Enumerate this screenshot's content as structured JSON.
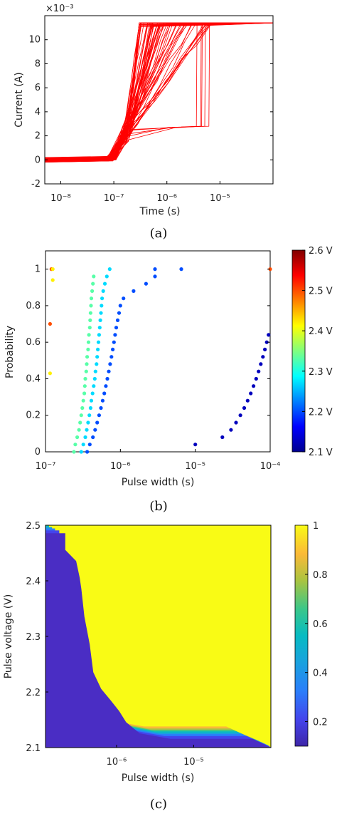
{
  "chart_data": [
    {
      "type": "line",
      "panel_label": "(a)",
      "xlabel": "Time (s)",
      "ylabel": "Current (A)",
      "x_scale": "log",
      "xlim": [
        5e-09,
        0.0001
      ],
      "ylim": [
        -2,
        12
      ],
      "y_multiplier_label": "×10⁻³",
      "xtick_labels": [
        "10⁻⁸",
        "10⁻⁷",
        "10⁻⁶",
        "10⁻⁵"
      ],
      "xtick_values": [
        1e-08,
        1e-07,
        1e-06,
        1e-05
      ],
      "ytick_values": [
        -2,
        0,
        2,
        4,
        6,
        8,
        10
      ],
      "ytick_labels": [
        "-2",
        "0",
        "2",
        "4",
        "6",
        "8",
        "10"
      ],
      "series_color": "#ff0000",
      "description_values": {
        "baseline_current_e-3": [
          -0.2,
          0.2
        ],
        "saturation_current_e-3": 11.4,
        "rise_start_time_s": 8e-08,
        "rise_end_time_range_s": [
          3e-07,
          8e-06
        ],
        "late_plateau_current_e-3": 2.7,
        "late_plateau_time_range_s": [
          1e-06,
          7e-06
        ]
      }
    },
    {
      "type": "scatter",
      "panel_label": "(b)",
      "xlabel": "Pulse width (s)",
      "ylabel": "Probability",
      "x_scale": "log",
      "xlim": [
        1e-07,
        0.0001
      ],
      "ylim": [
        0,
        1.1
      ],
      "xtick_labels": [
        "10⁻⁷",
        "10⁻⁶",
        "10⁻⁵",
        "10⁻⁴"
      ],
      "xtick_values": [
        1e-07,
        1e-06,
        1e-05,
        0.0001
      ],
      "ytick_values": [
        0,
        0.2,
        0.4,
        0.6,
        0.8,
        1
      ],
      "ytick_labels": [
        "0",
        "0.2",
        "0.4",
        "0.6",
        "0.8",
        "1"
      ],
      "colorbar": {
        "label_ticks": [
          "2.1 V",
          "2.2 V",
          "2.3 V",
          "2.4 V",
          "2.5 V",
          "2.6 V"
        ],
        "values": [
          2.1,
          2.2,
          2.3,
          2.4,
          2.5,
          2.6
        ],
        "colormap": "jet"
      },
      "series": [
        {
          "voltage": 2.5,
          "points": [
            [
              1.15e-07,
              0.7
            ],
            [
              1.2e-07,
              1.0
            ],
            [
              0.0001,
              1.0
            ]
          ]
        },
        {
          "voltage": 2.42,
          "points": [
            [
              1.15e-07,
              0.43
            ],
            [
              1.25e-07,
              0.94
            ],
            [
              1.25e-07,
              1.0
            ]
          ]
        },
        {
          "voltage": 2.33,
          "points": [
            [
              2.4e-07,
              0.0
            ],
            [
              2.5e-07,
              0.04
            ],
            [
              2.65e-07,
              0.08
            ],
            [
              2.8e-07,
              0.12
            ],
            [
              2.9e-07,
              0.16
            ],
            [
              3e-07,
              0.2
            ],
            [
              3.1e-07,
              0.24
            ],
            [
              3.2e-07,
              0.28
            ],
            [
              3.3e-07,
              0.32
            ],
            [
              3.35e-07,
              0.36
            ],
            [
              3.4e-07,
              0.4
            ],
            [
              3.5e-07,
              0.44
            ],
            [
              3.55e-07,
              0.48
            ],
            [
              3.6e-07,
              0.52
            ],
            [
              3.7e-07,
              0.56
            ],
            [
              3.75e-07,
              0.6
            ],
            [
              3.8e-07,
              0.64
            ],
            [
              3.9e-07,
              0.68
            ],
            [
              3.95e-07,
              0.72
            ],
            [
              4e-07,
              0.76
            ],
            [
              4.05e-07,
              0.8
            ],
            [
              4.1e-07,
              0.84
            ],
            [
              4.2e-07,
              0.88
            ],
            [
              4.3e-07,
              0.92
            ],
            [
              4.4e-07,
              0.96
            ]
          ]
        },
        {
          "voltage": 2.27,
          "points": [
            [
              3e-07,
              0.0
            ],
            [
              3.2e-07,
              0.04
            ],
            [
              3.4e-07,
              0.08
            ],
            [
              3.55e-07,
              0.12
            ],
            [
              3.7e-07,
              0.16
            ],
            [
              3.85e-07,
              0.2
            ],
            [
              4e-07,
              0.24
            ],
            [
              4.1e-07,
              0.28
            ],
            [
              4.25e-07,
              0.32
            ],
            [
              4.4e-07,
              0.36
            ],
            [
              4.55e-07,
              0.4
            ],
            [
              4.65e-07,
              0.44
            ],
            [
              4.8e-07,
              0.48
            ],
            [
              4.9e-07,
              0.52
            ],
            [
              5e-07,
              0.56
            ],
            [
              5.1e-07,
              0.6
            ],
            [
              5.2e-07,
              0.64
            ],
            [
              5.3e-07,
              0.68
            ],
            [
              5.4e-07,
              0.72
            ],
            [
              5.5e-07,
              0.76
            ],
            [
              5.6e-07,
              0.8
            ],
            [
              5.7e-07,
              0.84
            ],
            [
              5.9e-07,
              0.88
            ],
            [
              6.2e-07,
              0.92
            ],
            [
              6.6e-07,
              0.96
            ],
            [
              7.2e-07,
              1.0
            ]
          ]
        },
        {
          "voltage": 2.2,
          "points": [
            [
              3.6e-07,
              0.0
            ],
            [
              3.9e-07,
              0.04
            ],
            [
              4.3e-07,
              0.08
            ],
            [
              4.6e-07,
              0.12
            ],
            [
              4.9e-07,
              0.16
            ],
            [
              5.2e-07,
              0.2
            ],
            [
              5.5e-07,
              0.24
            ],
            [
              5.8e-07,
              0.28
            ],
            [
              6.1e-07,
              0.32
            ],
            [
              6.4e-07,
              0.36
            ],
            [
              6.7e-07,
              0.4
            ],
            [
              7e-07,
              0.44
            ],
            [
              7.3e-07,
              0.48
            ],
            [
              7.6e-07,
              0.52
            ],
            [
              7.9e-07,
              0.56
            ],
            [
              8.2e-07,
              0.6
            ],
            [
              8.5e-07,
              0.64
            ],
            [
              8.8e-07,
              0.68
            ],
            [
              9.2e-07,
              0.72
            ],
            [
              9.6e-07,
              0.76
            ],
            [
              1e-06,
              0.8
            ],
            [
              1.1e-06,
              0.84
            ],
            [
              1.5e-06,
              0.88
            ],
            [
              2.2e-06,
              0.92
            ],
            [
              2.9e-06,
              0.96
            ],
            [
              2.9e-06,
              1.0
            ],
            [
              6.5e-06,
              1.0
            ]
          ]
        },
        {
          "voltage": 2.13,
          "points": [
            [
              1e-05,
              0.04
            ],
            [
              2.3e-05,
              0.08
            ],
            [
              3e-05,
              0.12
            ],
            [
              3.5e-05,
              0.16
            ],
            [
              4e-05,
              0.2
            ],
            [
              4.5e-05,
              0.24
            ],
            [
              5e-05,
              0.28
            ],
            [
              5.5e-05,
              0.32
            ],
            [
              6e-05,
              0.36
            ],
            [
              6.5e-05,
              0.4
            ],
            [
              7e-05,
              0.44
            ],
            [
              7.5e-05,
              0.48
            ],
            [
              8e-05,
              0.52
            ],
            [
              8.5e-05,
              0.56
            ],
            [
              9e-05,
              0.6
            ],
            [
              9.5e-05,
              0.64
            ]
          ]
        }
      ]
    },
    {
      "type": "heatmap",
      "panel_label": "(c)",
      "xlabel": "Pulse width (s)",
      "ylabel": "Pulse voltage (V)",
      "x_scale": "log",
      "xlim": [
        1.2e-07,
        0.0001
      ],
      "ylim": [
        2.1,
        2.5
      ],
      "xtick_labels": [
        "10⁻⁶",
        "10⁻⁵"
      ],
      "xtick_values": [
        1e-06,
        1e-05
      ],
      "ytick_values": [
        2.1,
        2.2,
        2.3,
        2.4,
        2.5
      ],
      "ytick_labels": [
        "2.1",
        "2.2",
        "2.3",
        "2.4",
        "2.5"
      ],
      "colorbar": {
        "label_ticks": [
          "0.2",
          "0.4",
          "0.6",
          "0.8",
          "1"
        ],
        "values": [
          0.2,
          0.4,
          0.6,
          0.8,
          1.0
        ],
        "range": [
          0.1,
          1.0
        ],
        "colormap": "parula"
      },
      "switching_boundary_50pct": [
        [
          2.5,
          1.3e-07
        ],
        [
          2.48,
          1.3e-07
        ],
        [
          2.47,
          1.3e-07
        ],
        [
          2.45,
          1.8e-07
        ],
        [
          2.42,
          2e-07
        ],
        [
          2.4,
          2.1e-07
        ],
        [
          2.35,
          2.3e-07
        ],
        [
          2.3,
          2.7e-07
        ],
        [
          2.25,
          3e-07
        ],
        [
          2.22,
          3.8e-07
        ],
        [
          2.2,
          5e-07
        ],
        [
          2.18,
          6.5e-07
        ],
        [
          2.16,
          8e-07
        ],
        [
          2.14,
          1.2e-06
        ],
        [
          2.13,
          3e-06
        ],
        [
          2.13,
          3.5e-05
        ],
        [
          2.12,
          5e-05
        ],
        [
          2.11,
          7.5e-05
        ],
        [
          2.1,
          9e-05
        ]
      ]
    }
  ]
}
